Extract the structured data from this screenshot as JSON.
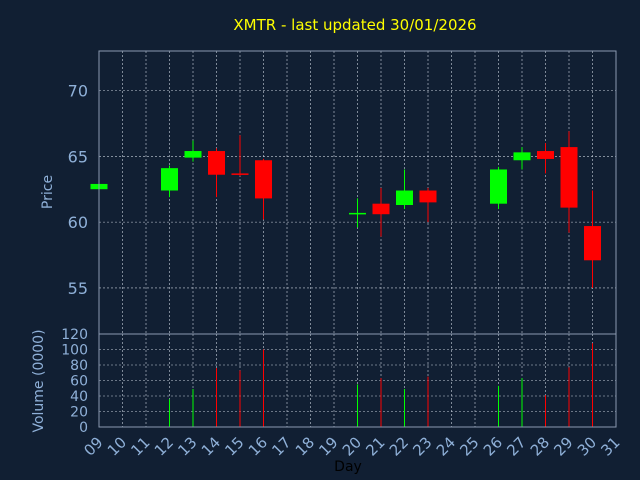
{
  "chart_data": {
    "type": "candlestick",
    "title": "XMTR - last updated 30/01/2026",
    "xlabel": "Day",
    "ylabel": "Price",
    "volume_label": "Volume (0000)",
    "x_ticks": [
      "09",
      "10",
      "11",
      "12",
      "13",
      "14",
      "15",
      "16",
      "17",
      "18",
      "19",
      "20",
      "21",
      "22",
      "23",
      "24",
      "25",
      "26",
      "27",
      "28",
      "29",
      "30",
      "31"
    ],
    "price_ticks": [
      55,
      60,
      65,
      70
    ],
    "price_range": [
      51.5,
      73
    ],
    "volume_ticks": [
      0,
      20,
      40,
      60,
      80,
      100,
      120
    ],
    "volume_range": [
      0,
      120
    ],
    "grid": true,
    "colors": {
      "background": "#111f33",
      "up": "#00ff00",
      "down": "#ff0000",
      "title": "#ffff00",
      "axis_text": "#8fb0d8",
      "frame": "#8a9ab0",
      "grid": "#c8d0dc"
    },
    "candles": [
      {
        "day": "09",
        "open": 62.5,
        "high": 62.9,
        "low": 62.4,
        "close": 62.9,
        "volume": 0
      },
      {
        "day": "12",
        "open": 62.4,
        "high": 64.3,
        "low": 61.9,
        "close": 64.1,
        "volume": 36
      },
      {
        "day": "13",
        "open": 64.9,
        "high": 66.2,
        "low": 64.6,
        "close": 65.4,
        "volume": 49
      },
      {
        "day": "14",
        "open": 65.4,
        "high": 65.6,
        "low": 61.9,
        "close": 63.6,
        "volume": 76
      },
      {
        "day": "15",
        "open": 63.7,
        "high": 66.6,
        "low": 63.5,
        "close": 63.6,
        "volume": 73
      },
      {
        "day": "16",
        "open": 64.7,
        "high": 64.8,
        "low": 60.2,
        "close": 61.8,
        "volume": 100
      },
      {
        "day": "20",
        "open": 60.6,
        "high": 61.8,
        "low": 59.6,
        "close": 60.7,
        "volume": 55
      },
      {
        "day": "21",
        "open": 61.4,
        "high": 62.6,
        "low": 58.9,
        "close": 60.6,
        "volume": 63
      },
      {
        "day": "22",
        "open": 61.3,
        "high": 64.0,
        "low": 61.0,
        "close": 62.4,
        "volume": 49
      },
      {
        "day": "23",
        "open": 62.4,
        "high": 62.6,
        "low": 60.0,
        "close": 61.5,
        "volume": 65
      },
      {
        "day": "26",
        "open": 61.4,
        "high": 64.2,
        "low": 61.0,
        "close": 64.0,
        "volume": 53
      },
      {
        "day": "27",
        "open": 64.7,
        "high": 65.7,
        "low": 64.0,
        "close": 65.3,
        "volume": 63
      },
      {
        "day": "28",
        "open": 65.4,
        "high": 66.0,
        "low": 63.7,
        "close": 64.8,
        "volume": 41
      },
      {
        "day": "29",
        "open": 65.7,
        "high": 66.9,
        "low": 59.2,
        "close": 61.1,
        "volume": 77
      },
      {
        "day": "30",
        "open": 59.7,
        "high": 62.4,
        "low": 55.0,
        "close": 57.1,
        "volume": 108
      }
    ]
  }
}
